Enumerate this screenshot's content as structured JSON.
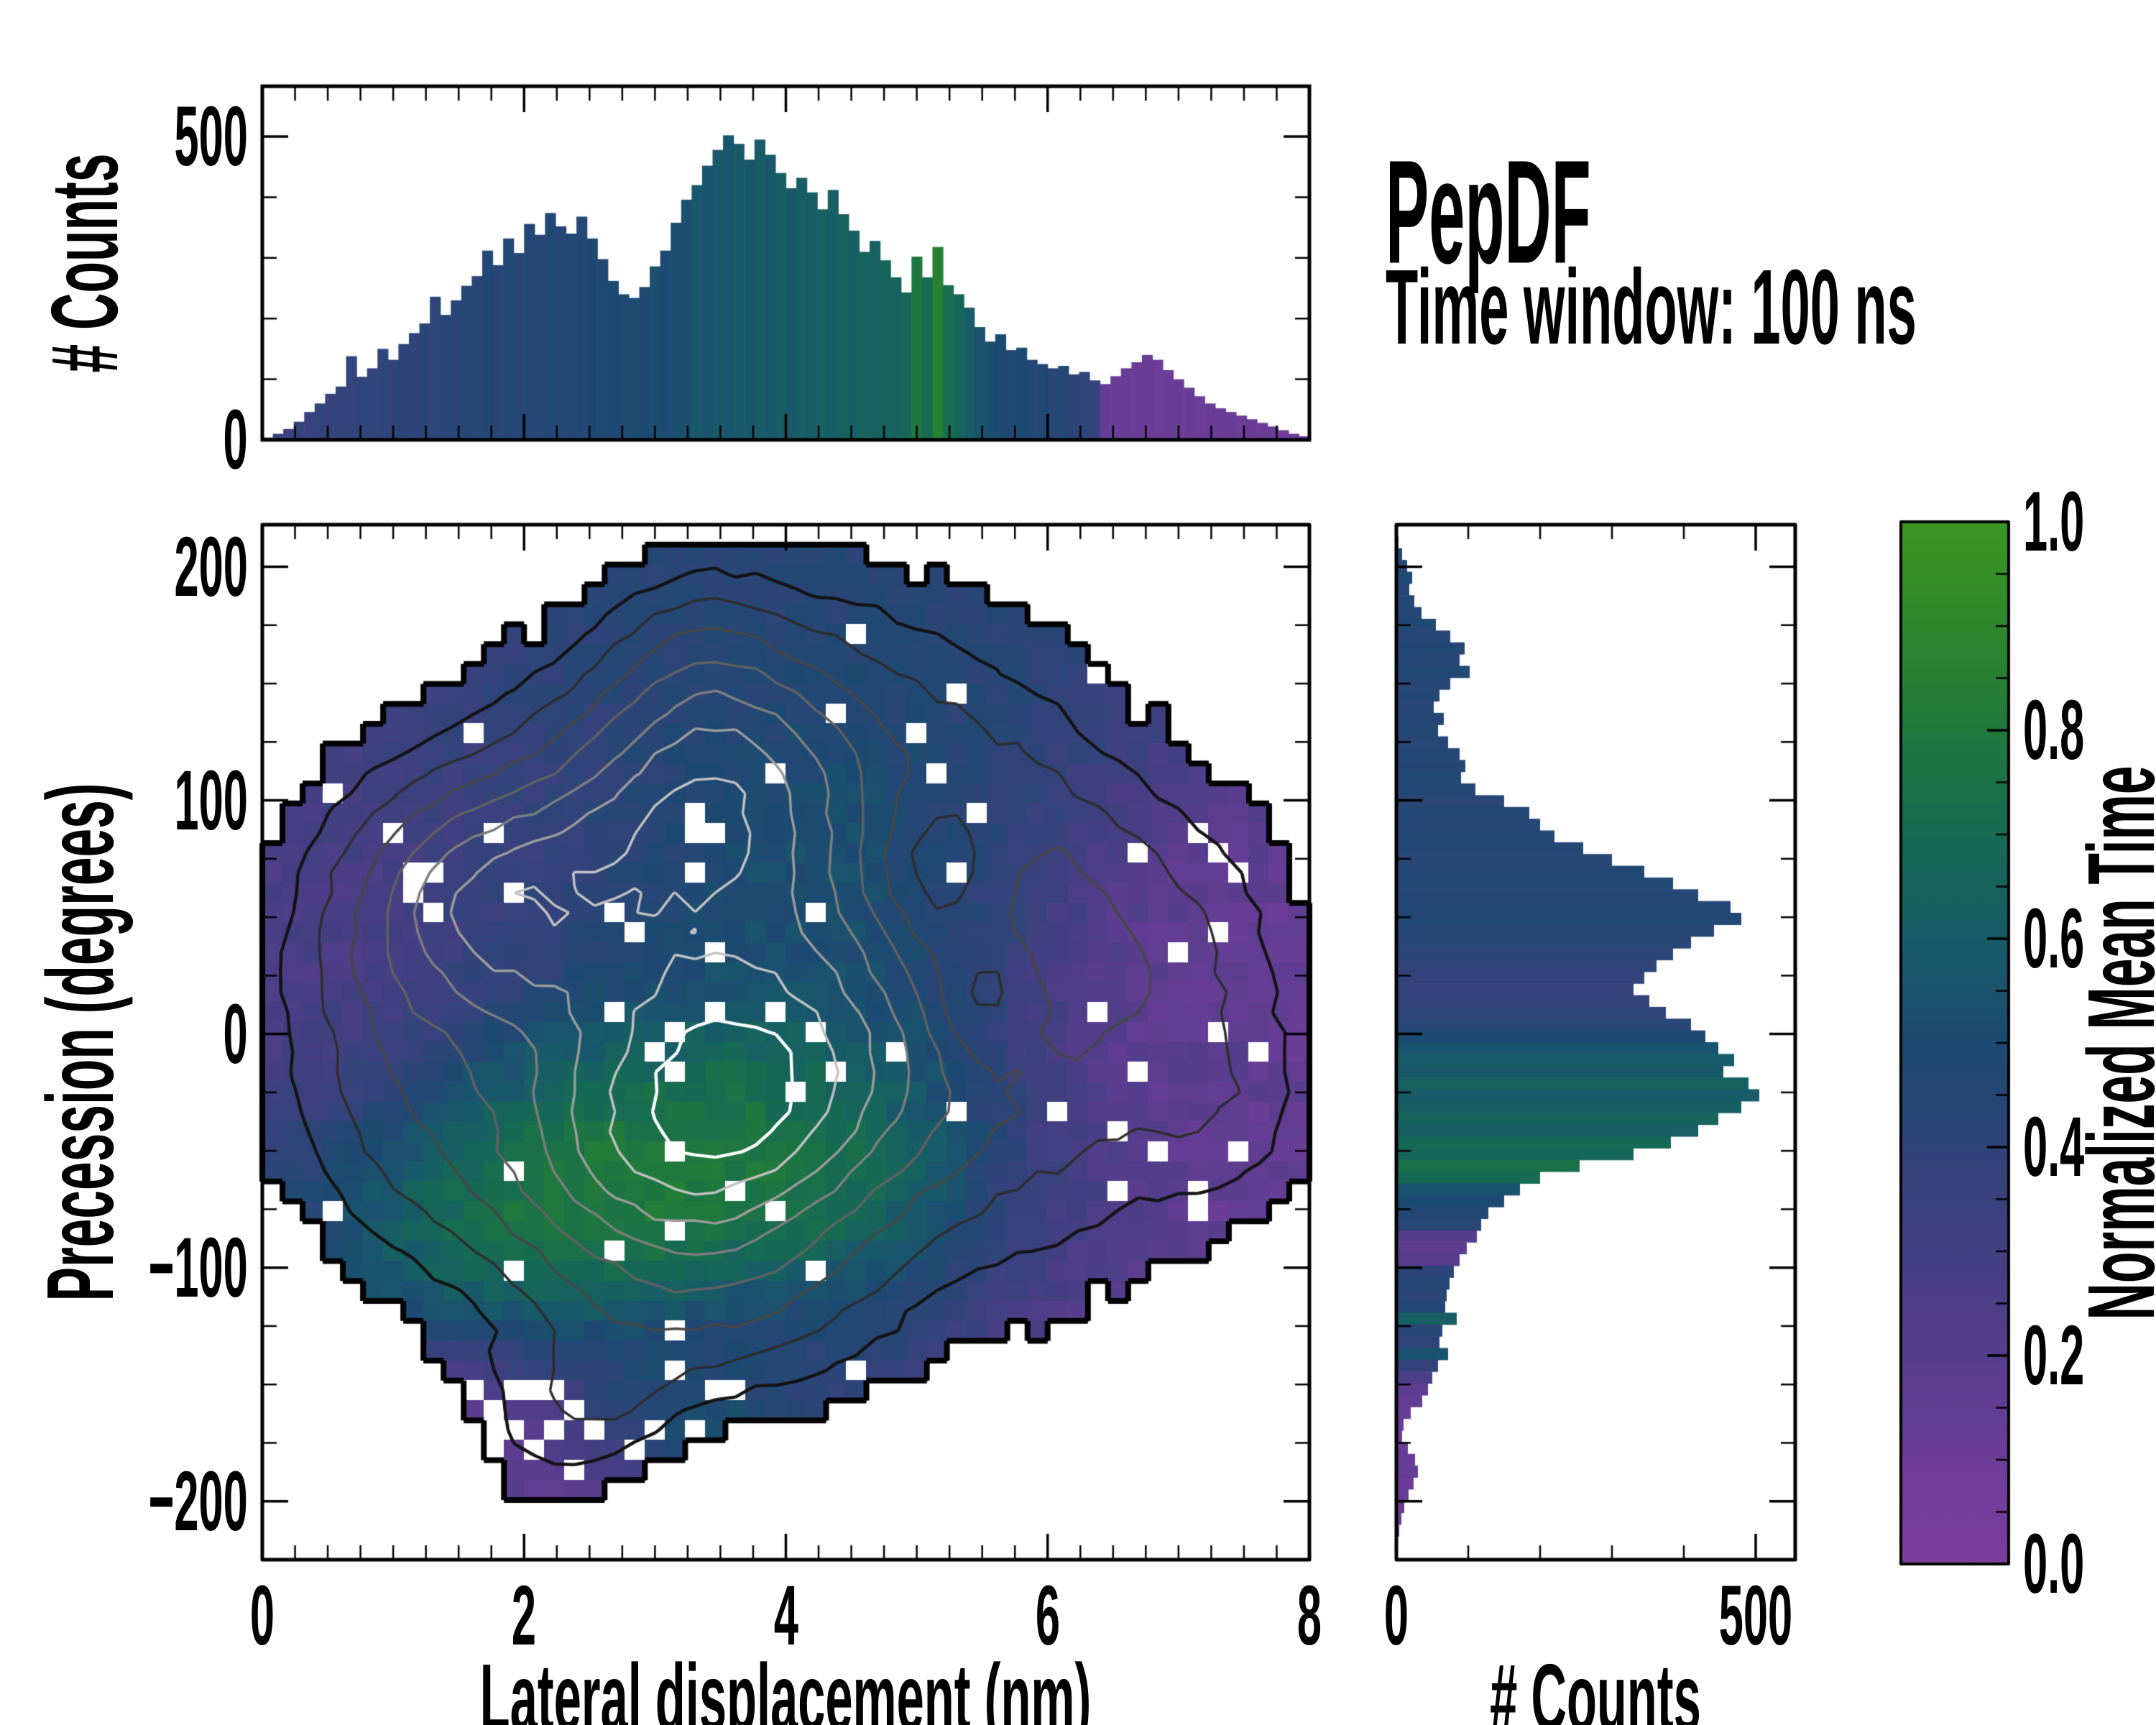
{
  "title": {
    "text": "PepDF",
    "subtitle": "Time window: 100 ns"
  },
  "labels": {
    "top_y": "# Counts",
    "main_y": "Precession (degrees)",
    "main_x": "Lateral displacement (nm)",
    "right_x": "# Counts",
    "colorbar": "Normalized Mean Time"
  },
  "ticks": {
    "top_y": [
      "500",
      "0"
    ],
    "main_y": [
      "200",
      "100",
      "0",
      "−100",
      "−200"
    ],
    "main_x": [
      "0",
      "2",
      "4",
      "6",
      "8"
    ],
    "right_x": [
      "0",
      "500"
    ],
    "colorbar": [
      "1.0",
      "0.8",
      "0.6",
      "0.4",
      "0.2",
      "0.0"
    ]
  },
  "colormap": {
    "stops": [
      [
        0.0,
        "#7c3e9e"
      ],
      [
        0.1,
        "#6e3d99"
      ],
      [
        0.2,
        "#573d8d"
      ],
      [
        0.3,
        "#433f82"
      ],
      [
        0.4,
        "#2f4479"
      ],
      [
        0.5,
        "#1d4a72"
      ],
      [
        0.6,
        "#175c68"
      ],
      [
        0.7,
        "#166b52"
      ],
      [
        0.8,
        "#20793c"
      ],
      [
        0.9,
        "#2f882c"
      ],
      [
        1.0,
        "#3c9621"
      ]
    ]
  },
  "chart_data": [
    {
      "type": "bar",
      "panel": "top-histogram",
      "ylabel": "# Counts",
      "x_range": [
        0,
        8
      ],
      "y_ticks": [
        0,
        500
      ],
      "bin_width_nm": 0.08,
      "values": [
        4,
        10,
        18,
        30,
        46,
        60,
        76,
        88,
        138,
        104,
        118,
        150,
        132,
        158,
        176,
        192,
        236,
        206,
        230,
        254,
        270,
        312,
        288,
        332,
        308,
        356,
        338,
        374,
        352,
        340,
        368,
        332,
        298,
        262,
        240,
        234,
        252,
        286,
        312,
        358,
        396,
        420,
        452,
        478,
        502,
        488,
        462,
        495,
        470,
        440,
        415,
        432,
        408,
        380,
        412,
        372,
        345,
        310,
        328,
        296,
        268,
        243,
        302,
        268,
        318,
        255,
        240,
        218,
        186,
        162,
        174,
        148,
        152,
        132,
        125,
        118,
        122,
        108,
        112,
        98,
        92,
        105,
        118,
        128,
        140,
        132,
        115,
        100,
        86,
        72,
        60,
        52,
        46,
        40,
        34,
        28,
        22,
        16,
        10,
        6
      ],
      "color_values": [
        0.34,
        0.36,
        0.33,
        0.37,
        0.35,
        0.38,
        0.36,
        0.39,
        0.37,
        0.4,
        0.38,
        0.41,
        0.39,
        0.42,
        0.4,
        0.43,
        0.41,
        0.44,
        0.42,
        0.45,
        0.43,
        0.46,
        0.44,
        0.47,
        0.45,
        0.46,
        0.44,
        0.47,
        0.45,
        0.48,
        0.46,
        0.49,
        0.47,
        0.5,
        0.48,
        0.51,
        0.49,
        0.52,
        0.5,
        0.53,
        0.54,
        0.57,
        0.55,
        0.58,
        0.56,
        0.59,
        0.57,
        0.6,
        0.58,
        0.61,
        0.59,
        0.62,
        0.6,
        0.63,
        0.61,
        0.64,
        0.62,
        0.65,
        0.63,
        0.66,
        0.64,
        0.67,
        0.78,
        0.7,
        0.85,
        0.72,
        0.66,
        0.6,
        0.55,
        0.52,
        0.5,
        0.48,
        0.5,
        0.46,
        0.48,
        0.44,
        0.46,
        0.42,
        0.4,
        0.38,
        0.15,
        0.12,
        0.14,
        0.11,
        0.13,
        0.1,
        0.12,
        0.11,
        0.13,
        0.1,
        0.12,
        0.11,
        0.13,
        0.1,
        0.12,
        0.11,
        0.13,
        0.1,
        0.12,
        0.11
      ]
    },
    {
      "type": "heatmap",
      "panel": "main",
      "xlabel": "Lateral displacement (nm)",
      "ylabel": "Precession (degrees)",
      "x_ticks": [
        0,
        2,
        4,
        6,
        8
      ],
      "y_ticks": [
        -200,
        -100,
        0,
        100,
        200
      ],
      "x_range": [
        0,
        8
      ],
      "y_range": [
        -225,
        218
      ],
      "grid": [
        52,
        52
      ],
      "color_label": "Normalized Mean Time",
      "field_model": {
        "threshold": 0.3,
        "hole_base": 0.04,
        "density_peaks": [
          {
            "x": 3.4,
            "y": 100,
            "sx": 0.85,
            "sy": 42,
            "a": 1.05
          },
          {
            "x": 1.8,
            "y": 58,
            "sx": 0.75,
            "sy": 38,
            "a": 0.95
          },
          {
            "x": 3.7,
            "y": -12,
            "sx": 1.05,
            "sy": 48,
            "a": 1.15
          },
          {
            "x": 2.9,
            "y": -62,
            "sx": 1.15,
            "sy": 40,
            "a": 0.8
          },
          {
            "x": 3.6,
            "y": 30,
            "sx": 2.3,
            "sy": 95,
            "a": 0.6
          },
          {
            "x": 6.2,
            "y": -15,
            "sx": 1.15,
            "sy": 80,
            "a": 0.42
          },
          {
            "x": 7.5,
            "y": -35,
            "sx": 0.5,
            "sy": 30,
            "a": 0.25
          },
          {
            "x": 4.4,
            "y": 150,
            "sx": 1.3,
            "sy": 45,
            "a": 0.34
          },
          {
            "x": 3.3,
            "y": 165,
            "sx": 0.5,
            "sy": 30,
            "a": 0.26
          },
          {
            "x": 6.9,
            "y": 40,
            "sx": 0.8,
            "sy": 45,
            "a": 0.3
          },
          {
            "x": 0.9,
            "y": 0,
            "sx": 0.7,
            "sy": 70,
            "a": 0.4
          },
          {
            "x": 3.5,
            "y": -125,
            "sx": 0.95,
            "sy": 32,
            "a": 0.45
          },
          {
            "x": 2.6,
            "y": -158,
            "sx": 0.45,
            "sy": 22,
            "a": 0.3
          },
          {
            "x": 1.95,
            "y": -178,
            "sx": 0.6,
            "sy": 33,
            "a": 0.34
          },
          {
            "x": 5.6,
            "y": 80,
            "sx": 0.7,
            "sy": 40,
            "a": 0.28
          },
          {
            "x": 5.15,
            "y": 70,
            "sx": 0.35,
            "sy": 25,
            "a": -0.5
          },
          {
            "x": 5.5,
            "y": 15,
            "sx": 0.3,
            "sy": 20,
            "a": -0.45
          },
          {
            "x": 1.35,
            "y": -180,
            "sx": 0.28,
            "sy": 16,
            "a": -0.33
          }
        ],
        "value_regions": [
          {
            "x": 3.6,
            "y": 150,
            "sx": 2.0,
            "sy": 55,
            "v": 0.44,
            "w": 3
          },
          {
            "x": 2.0,
            "y": 170,
            "sx": 1.2,
            "sy": 40,
            "v": 0.4,
            "w": 1.5
          },
          {
            "x": 0.8,
            "y": 30,
            "sx": 0.9,
            "sy": 80,
            "v": 0.18,
            "w": 2.5
          },
          {
            "x": 1.6,
            "y": 90,
            "sx": 0.8,
            "sy": 45,
            "v": 0.3,
            "w": 2
          },
          {
            "x": 2.2,
            "y": 40,
            "sx": 1.0,
            "sy": 45,
            "v": 0.4,
            "w": 2
          },
          {
            "x": 3.2,
            "y": 5,
            "sx": 1.3,
            "sy": 55,
            "v": 0.52,
            "w": 2.5
          },
          {
            "x": 4.9,
            "y": 30,
            "sx": 0.9,
            "sy": 55,
            "v": 0.63,
            "w": 2.5
          },
          {
            "x": 4.2,
            "y": 90,
            "sx": 0.8,
            "sy": 40,
            "v": 0.6,
            "w": 1.5
          },
          {
            "x": 3.1,
            "y": -60,
            "sx": 1.3,
            "sy": 38,
            "v": 0.95,
            "w": 5
          },
          {
            "x": 4.5,
            "y": -35,
            "sx": 0.8,
            "sy": 30,
            "v": 0.82,
            "w": 2
          },
          {
            "x": 2.2,
            "y": -95,
            "sx": 0.8,
            "sy": 30,
            "v": 0.75,
            "w": 1.5
          },
          {
            "x": 6.6,
            "y": -20,
            "sx": 1.3,
            "sy": 75,
            "v": 0.1,
            "w": 3.5
          },
          {
            "x": 7.0,
            "y": 45,
            "sx": 0.8,
            "sy": 40,
            "v": 0.1,
            "w": 2
          },
          {
            "x": 5.9,
            "y": 60,
            "sx": 0.6,
            "sy": 40,
            "v": 0.45,
            "w": 1
          },
          {
            "x": 3.6,
            "y": -125,
            "sx": 1.0,
            "sy": 28,
            "v": 0.28,
            "w": 2.5
          },
          {
            "x": 3.1,
            "y": -160,
            "sx": 0.5,
            "sy": 20,
            "v": 0.75,
            "w": 1.8
          },
          {
            "x": 1.9,
            "y": -180,
            "sx": 0.8,
            "sy": 35,
            "v": 0.12,
            "w": 3
          },
          {
            "x": 4.4,
            "y": -115,
            "sx": 0.6,
            "sy": 25,
            "v": 0.55,
            "w": 1
          },
          {
            "x": 6.3,
            "y": -70,
            "sx": 0.35,
            "sy": 25,
            "v": 0.5,
            "w": 1
          },
          {
            "x": 7.2,
            "y": -10,
            "sx": 0.3,
            "sy": 20,
            "v": 0.45,
            "w": 0.8
          }
        ]
      }
    },
    {
      "type": "bar",
      "panel": "right-histogram",
      "xlabel": "# Counts",
      "x_ticks": [
        0,
        500
      ],
      "y_range_deg": [
        218,
        -225
      ],
      "bin_width_deg": 5,
      "values": [
        0,
        3,
        8,
        15,
        22,
        18,
        25,
        35,
        55,
        75,
        95,
        88,
        102,
        75,
        60,
        52,
        66,
        58,
        72,
        88,
        96,
        90,
        110,
        150,
        185,
        200,
        220,
        260,
        300,
        345,
        385,
        420,
        465,
        480,
        442,
        410,
        385,
        362,
        345,
        330,
        352,
        375,
        410,
        430,
        448,
        470,
        455,
        490,
        505,
        480,
        448,
        420,
        382,
        330,
        255,
        200,
        172,
        150,
        128,
        118,
        112,
        98,
        88,
        80,
        74,
        70,
        68,
        84,
        64,
        60,
        72,
        58,
        50,
        44,
        36,
        20,
        10,
        8,
        16,
        26,
        30,
        24,
        17,
        11,
        7,
        4,
        2,
        1
      ],
      "color_values": [
        0.44,
        0.46,
        0.43,
        0.45,
        0.47,
        0.44,
        0.46,
        0.45,
        0.47,
        0.44,
        0.46,
        0.45,
        0.47,
        0.44,
        0.46,
        0.43,
        0.45,
        0.47,
        0.44,
        0.46,
        0.45,
        0.47,
        0.46,
        0.44,
        0.46,
        0.45,
        0.47,
        0.46,
        0.44,
        0.46,
        0.47,
        0.45,
        0.46,
        0.47,
        0.45,
        0.44,
        0.42,
        0.4,
        0.38,
        0.37,
        0.39,
        0.41,
        0.44,
        0.5,
        0.55,
        0.6,
        0.58,
        0.63,
        0.6,
        0.62,
        0.65,
        0.62,
        0.68,
        0.66,
        0.74,
        0.7,
        0.55,
        0.5,
        0.47,
        0.44,
        0.2,
        0.17,
        0.19,
        0.42,
        0.45,
        0.43,
        0.46,
        0.62,
        0.44,
        0.4,
        0.55,
        0.38,
        0.25,
        0.18,
        0.15,
        0.13,
        0.12,
        0.11,
        0.13,
        0.12,
        0.14,
        0.11,
        0.13,
        0.1,
        0.12,
        0.11,
        0.1,
        0.12
      ]
    },
    {
      "type": "colorbar",
      "panel": "colorbar",
      "label": "Normalized Mean Time",
      "range": [
        0.0,
        1.0
      ],
      "tick_step": 0.2,
      "minor_tick_step": 0.05
    }
  ]
}
